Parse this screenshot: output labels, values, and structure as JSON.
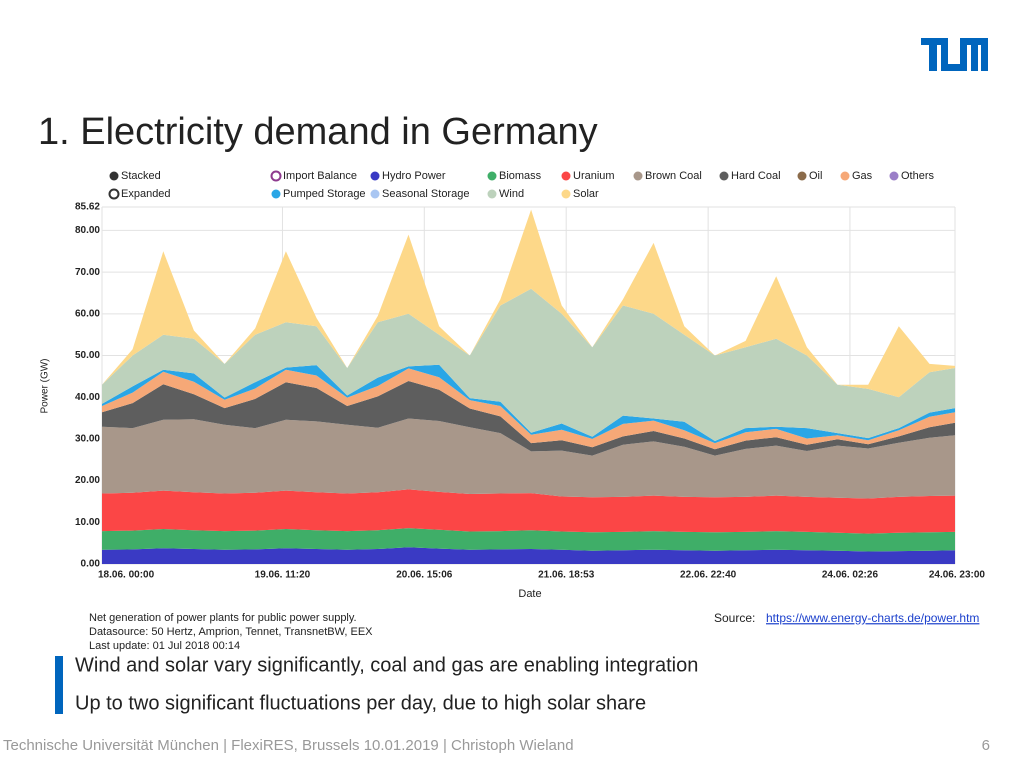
{
  "slide": {
    "title": "1. Electricity demand in Germany",
    "logo": "TUM",
    "notes": [
      "Net generation of power plants for public power supply.",
      "Datasource: 50 Hertz, Amprion, Tennet, TransnetBW, EEX",
      "Last update: 01 Jul 2018 00:14"
    ],
    "source": {
      "label": "Source:",
      "url": "https://www.energy-charts.de/power.htm"
    },
    "bullets": [
      "Wind and solar vary significantly, coal and gas are enabling integration",
      "Up to two significant fluctuations per day, due to high solar share"
    ],
    "footer": "Technische Universität München | FlexiRES, Brussels 10.01.2019 | Christoph Wieland",
    "page": "6"
  },
  "chart_data": {
    "type": "stacked_area",
    "x_label": "Date",
    "y_label": "Power (GW)",
    "modes": [
      "Stacked",
      "Expanded"
    ],
    "legend_only": [
      {
        "name": "Import Balance",
        "color": "#8e3a8e"
      },
      {
        "name": "Oil",
        "color": "#8b6b4a"
      },
      {
        "name": "Others",
        "color": "#9b7fc8"
      },
      {
        "name": "Seasonal Storage",
        "color": "#a9c6f2"
      }
    ],
    "x": [
      0,
      6,
      12,
      18,
      24,
      30,
      36,
      42,
      48,
      54,
      60,
      66,
      72,
      78,
      84,
      90,
      96,
      102,
      108,
      114,
      120,
      126,
      132,
      138,
      144,
      150,
      156,
      162,
      167
    ],
    "xlim": [
      0,
      167
    ],
    "xticks": [
      {
        "value": 0,
        "label": "18.06. 00:00"
      },
      {
        "value": 35.33,
        "label": "19.06. 11:20"
      },
      {
        "value": 63.1,
        "label": "20.06. 15:06"
      },
      {
        "value": 90.88,
        "label": "21.06. 18:53"
      },
      {
        "value": 118.67,
        "label": "22.06. 22:40"
      },
      {
        "value": 146.43,
        "label": "24.06. 02:26"
      },
      {
        "value": 167,
        "label": "24.06. 23:00"
      }
    ],
    "ylim": [
      0,
      85.62
    ],
    "yticks": [
      {
        "value": 0,
        "label": "0.00"
      },
      {
        "value": 10,
        "label": "10.00"
      },
      {
        "value": 20,
        "label": "20.00"
      },
      {
        "value": 30,
        "label": "30.00"
      },
      {
        "value": 40,
        "label": "40.00"
      },
      {
        "value": 50,
        "label": "50.00"
      },
      {
        "value": 60,
        "label": "60.00"
      },
      {
        "value": 70,
        "label": "70.00"
      },
      {
        "value": 80,
        "label": "80.00"
      },
      {
        "value": 85.62,
        "label": "85.62"
      }
    ],
    "grid": true,
    "series": [
      {
        "name": "Hydro Power",
        "color": "#3a3ac4",
        "values": [
          3.4,
          3.5,
          3.8,
          3.6,
          3.4,
          3.5,
          3.8,
          3.6,
          3.4,
          3.6,
          4.0,
          3.7,
          3.4,
          3.5,
          3.6,
          3.4,
          3.2,
          3.3,
          3.4,
          3.3,
          3.2,
          3.3,
          3.4,
          3.3,
          3.2,
          3.0,
          3.1,
          3.2,
          3.3
        ]
      },
      {
        "name": "Biomass",
        "color": "#3fae68",
        "values": [
          4.5,
          4.5,
          4.6,
          4.5,
          4.5,
          4.5,
          4.6,
          4.5,
          4.5,
          4.5,
          4.6,
          4.5,
          4.4,
          4.4,
          4.5,
          4.4,
          4.4,
          4.4,
          4.5,
          4.4,
          4.4,
          4.4,
          4.5,
          4.4,
          4.3,
          4.3,
          4.4,
          4.4,
          4.4
        ]
      },
      {
        "name": "Uranium",
        "color": "#fb4646",
        "values": [
          9.0,
          9.1,
          9.2,
          9.1,
          9.0,
          9.1,
          9.2,
          9.1,
          9.0,
          9.1,
          9.3,
          9.1,
          9.0,
          9.0,
          8.9,
          8.4,
          8.4,
          8.4,
          8.5,
          8.4,
          8.4,
          8.4,
          8.5,
          8.4,
          8.4,
          8.4,
          8.6,
          8.7,
          8.7
        ]
      },
      {
        "name": "Brown Coal",
        "color": "#a8978a",
        "values": [
          16.0,
          15.5,
          17.0,
          17.5,
          16.5,
          15.5,
          17.0,
          17.0,
          16.5,
          15.5,
          17.0,
          17.0,
          16.0,
          14.5,
          10.0,
          11.0,
          10.0,
          12.5,
          13.0,
          12.0,
          10.0,
          11.5,
          12.0,
          11.0,
          12.5,
          12.0,
          13.0,
          14.0,
          14.5
        ]
      },
      {
        "name": "Hard Coal",
        "color": "#5e5e5e",
        "values": [
          3.5,
          6.0,
          8.5,
          6.0,
          4.0,
          7.0,
          9.0,
          8.0,
          4.5,
          7.5,
          9.0,
          7.5,
          4.5,
          4.0,
          2.0,
          2.5,
          2.0,
          2.0,
          2.5,
          2.0,
          1.5,
          2.0,
          2.0,
          1.5,
          1.5,
          1.0,
          1.5,
          2.5,
          3.0
        ]
      },
      {
        "name": "Gas",
        "color": "#f6a877",
        "values": [
          1.5,
          2.5,
          3.0,
          3.0,
          2.0,
          2.5,
          3.0,
          3.0,
          2.0,
          2.5,
          3.0,
          3.0,
          2.0,
          2.5,
          2.0,
          2.5,
          2.0,
          3.0,
          2.5,
          2.0,
          1.5,
          2.0,
          2.0,
          1.5,
          1.0,
          1.0,
          1.5,
          2.5,
          2.5
        ]
      },
      {
        "name": "Pumped Storage",
        "color": "#2aa6e6",
        "values": [
          0.5,
          1.5,
          0.5,
          2.0,
          0.5,
          1.5,
          0.5,
          2.5,
          0.5,
          2.0,
          0.5,
          3.0,
          0.5,
          1.0,
          0.5,
          1.5,
          0.5,
          2.0,
          0.5,
          2.0,
          0.5,
          1.0,
          0.5,
          2.5,
          0.5,
          0.5,
          0.5,
          1.0,
          1.0
        ]
      },
      {
        "name": "Wind",
        "color": "#bdd2bc",
        "values": [
          4.6,
          7.4,
          8.4,
          8.3,
          8.1,
          11.4,
          10.9,
          9.3,
          6.6,
          13.3,
          12.6,
          7.2,
          10.2,
          23.1,
          34.5,
          26.3,
          21.5,
          26.4,
          25.1,
          20.9,
          20.5,
          19.4,
          21.1,
          17.4,
          11.6,
          11.8,
          7.4,
          9.7,
          9.6
        ]
      },
      {
        "name": "Solar",
        "color": "#fdd889",
        "values": [
          0,
          1.5,
          20,
          2,
          0,
          1.5,
          17,
          2,
          0,
          1.5,
          19,
          2,
          0,
          1.5,
          19,
          2,
          0,
          1.5,
          17,
          2,
          0,
          1.5,
          15,
          2,
          0,
          1,
          17,
          2,
          0.5
        ]
      }
    ]
  }
}
